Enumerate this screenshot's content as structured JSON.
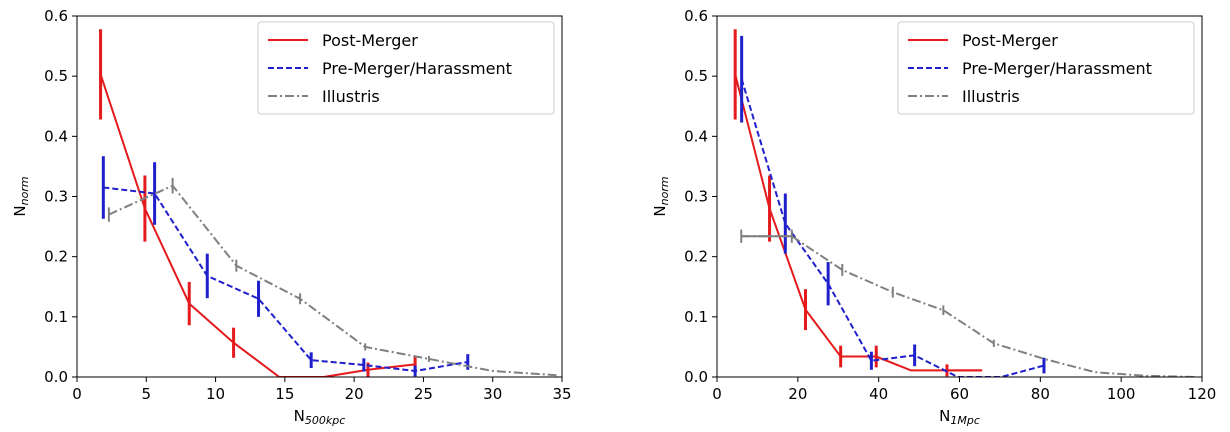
{
  "chart_data": [
    {
      "type": "line",
      "xlabel": "N",
      "xlabel_sub": "500kpc",
      "ylabel": "N",
      "ylabel_sub": "norm",
      "xlim": [
        0,
        35
      ],
      "ylim": [
        0,
        0.6
      ],
      "xticks": [
        0,
        5,
        10,
        15,
        20,
        25,
        30,
        35
      ],
      "yticks": [
        0.0,
        0.1,
        0.2,
        0.3,
        0.4,
        0.5,
        0.6
      ],
      "legend_position": "top-right",
      "series": [
        {
          "name": "Post-Merger",
          "color": "#e41a1c",
          "dash": "solid",
          "x": [
            1.7,
            4.9,
            8.1,
            11.3,
            14.6,
            17.8,
            21.0,
            24.4
          ],
          "y": [
            0.503,
            0.28,
            0.122,
            0.057,
            0.0,
            0.0,
            0.012,
            0.021
          ],
          "errorbars": [
            {
              "x": 1.7,
              "y": 0.503,
              "err": 0.075
            },
            {
              "x": 4.9,
              "y": 0.28,
              "err": 0.055
            },
            {
              "x": 8.1,
              "y": 0.122,
              "err": 0.036
            },
            {
              "x": 11.3,
              "y": 0.057,
              "err": 0.025
            },
            {
              "x": 21.0,
              "y": 0.012,
              "err": 0.012
            },
            {
              "x": 24.4,
              "y": 0.021,
              "err": 0.012
            }
          ]
        },
        {
          "name": "Pre-Merger/Harassment",
          "color": "#1f1fcc",
          "dash": "dashed",
          "x": [
            1.9,
            5.6,
            9.4,
            13.1,
            16.9,
            20.7,
            24.4,
            28.2
          ],
          "y": [
            0.315,
            0.305,
            0.168,
            0.13,
            0.028,
            0.02,
            0.01,
            0.025
          ],
          "errorbars": [
            {
              "x": 1.9,
              "y": 0.315,
              "err": 0.052
            },
            {
              "x": 5.6,
              "y": 0.305,
              "err": 0.052
            },
            {
              "x": 9.4,
              "y": 0.168,
              "err": 0.037
            },
            {
              "x": 13.1,
              "y": 0.13,
              "err": 0.03
            },
            {
              "x": 16.9,
              "y": 0.028,
              "err": 0.013
            },
            {
              "x": 20.7,
              "y": 0.02,
              "err": 0.011
            },
            {
              "x": 24.4,
              "y": 0.01,
              "err": 0.009
            },
            {
              "x": 28.2,
              "y": 0.025,
              "err": 0.013
            }
          ]
        },
        {
          "name": "Illustris",
          "color": "#808080",
          "dash": "dashdot",
          "x": [
            2.3,
            6.9,
            11.5,
            16.1,
            20.8,
            25.4,
            30.0,
            34.6
          ],
          "y": [
            0.27,
            0.318,
            0.185,
            0.13,
            0.05,
            0.03,
            0.01,
            0.003
          ],
          "errorbars": [
            {
              "x": 2.3,
              "y": 0.27,
              "err": 0.012
            },
            {
              "x": 6.9,
              "y": 0.318,
              "err": 0.013
            },
            {
              "x": 11.5,
              "y": 0.185,
              "err": 0.01
            },
            {
              "x": 16.1,
              "y": 0.13,
              "err": 0.009
            },
            {
              "x": 20.8,
              "y": 0.05,
              "err": 0.006
            },
            {
              "x": 25.4,
              "y": 0.03,
              "err": 0.005
            }
          ]
        }
      ]
    },
    {
      "type": "line",
      "xlabel": "N",
      "xlabel_sub": "1Mpc",
      "ylabel": "N",
      "ylabel_sub": "norm",
      "xlim": [
        0,
        120
      ],
      "ylim": [
        0,
        0.6
      ],
      "xticks": [
        0,
        20,
        40,
        60,
        80,
        100,
        120
      ],
      "yticks": [
        0.0,
        0.1,
        0.2,
        0.3,
        0.4,
        0.5,
        0.6
      ],
      "legend_position": "top-right",
      "series": [
        {
          "name": "Post-Merger",
          "color": "#e41a1c",
          "dash": "solid",
          "x": [
            4.5,
            13.0,
            21.9,
            30.6,
            39.4,
            48.0,
            56.9,
            65.6
          ],
          "y": [
            0.503,
            0.28,
            0.112,
            0.034,
            0.034,
            0.011,
            0.011,
            0.011
          ],
          "errorbars": [
            {
              "x": 4.5,
              "y": 0.503,
              "err": 0.075
            },
            {
              "x": 13.0,
              "y": 0.28,
              "err": 0.055
            },
            {
              "x": 21.9,
              "y": 0.112,
              "err": 0.034
            },
            {
              "x": 30.6,
              "y": 0.034,
              "err": 0.018
            },
            {
              "x": 39.4,
              "y": 0.034,
              "err": 0.018
            },
            {
              "x": 56.9,
              "y": 0.011,
              "err": 0.01
            }
          ],
          "xerrbars": [
            {
              "x": 61.2,
              "y": 0.011,
              "halfwidth": 4.4
            }
          ]
        },
        {
          "name": "Pre-Merger/Harassment",
          "color": "#1f1fcc",
          "dash": "dashed",
          "x": [
            6.1,
            16.9,
            27.5,
            38.2,
            48.9,
            59.6,
            70.3,
            80.9
          ],
          "y": [
            0.495,
            0.255,
            0.155,
            0.027,
            0.036,
            0.0,
            0.0,
            0.019
          ],
          "errorbars": [
            {
              "x": 6.1,
              "y": 0.495,
              "err": 0.072
            },
            {
              "x": 16.9,
              "y": 0.255,
              "err": 0.05
            },
            {
              "x": 27.5,
              "y": 0.155,
              "err": 0.036
            },
            {
              "x": 38.2,
              "y": 0.027,
              "err": 0.015
            },
            {
              "x": 48.9,
              "y": 0.036,
              "err": 0.018
            },
            {
              "x": 80.9,
              "y": 0.019,
              "err": 0.013
            }
          ]
        },
        {
          "name": "Illustris",
          "color": "#808080",
          "dash": "dashdot",
          "x": [
            6.0,
            18.5,
            31.0,
            43.5,
            56.0,
            68.5,
            81.0,
            93.5,
            106.0,
            118.5
          ],
          "y": [
            0.234,
            0.234,
            0.178,
            0.141,
            0.111,
            0.056,
            0.03,
            0.008,
            0.002,
            0.0
          ],
          "errorbars": [
            {
              "x": 6.0,
              "y": 0.234,
              "err": 0.011
            },
            {
              "x": 18.5,
              "y": 0.234,
              "err": 0.011
            },
            {
              "x": 31.0,
              "y": 0.178,
              "err": 0.01
            },
            {
              "x": 43.5,
              "y": 0.141,
              "err": 0.009
            },
            {
              "x": 56.0,
              "y": 0.111,
              "err": 0.008
            },
            {
              "x": 68.5,
              "y": 0.056,
              "err": 0.006
            }
          ],
          "xerrbars": [
            {
              "x": 12.25,
              "y": 0.234,
              "halfwidth": 6.25
            }
          ]
        }
      ]
    }
  ]
}
